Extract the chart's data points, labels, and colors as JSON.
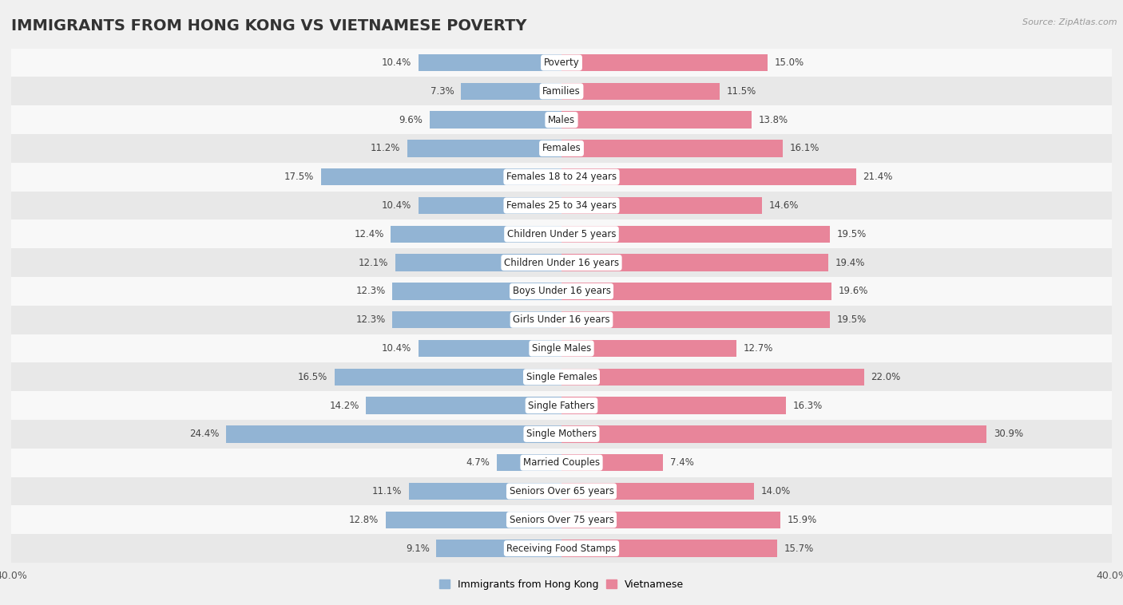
{
  "title": "IMMIGRANTS FROM HONG KONG VS VIETNAMESE POVERTY",
  "source": "Source: ZipAtlas.com",
  "categories": [
    "Poverty",
    "Families",
    "Males",
    "Females",
    "Females 18 to 24 years",
    "Females 25 to 34 years",
    "Children Under 5 years",
    "Children Under 16 years",
    "Boys Under 16 years",
    "Girls Under 16 years",
    "Single Males",
    "Single Females",
    "Single Fathers",
    "Single Mothers",
    "Married Couples",
    "Seniors Over 65 years",
    "Seniors Over 75 years",
    "Receiving Food Stamps"
  ],
  "hk_values": [
    10.4,
    7.3,
    9.6,
    11.2,
    17.5,
    10.4,
    12.4,
    12.1,
    12.3,
    12.3,
    10.4,
    16.5,
    14.2,
    24.4,
    4.7,
    11.1,
    12.8,
    9.1
  ],
  "viet_values": [
    15.0,
    11.5,
    13.8,
    16.1,
    21.4,
    14.6,
    19.5,
    19.4,
    19.6,
    19.5,
    12.7,
    22.0,
    16.3,
    30.9,
    7.4,
    14.0,
    15.9,
    15.7
  ],
  "hk_color": "#92b4d4",
  "viet_color": "#e8859a",
  "hk_label": "Immigrants from Hong Kong",
  "viet_label": "Vietnamese",
  "xlim": 40.0,
  "bg_color": "#f0f0f0",
  "row_light_color": "#f8f8f8",
  "row_dark_color": "#e8e8e8",
  "bar_height": 0.6,
  "title_fontsize": 14,
  "cat_fontsize": 8.5,
  "value_fontsize": 8.5,
  "axis_label_fontsize": 9,
  "legend_fontsize": 9
}
